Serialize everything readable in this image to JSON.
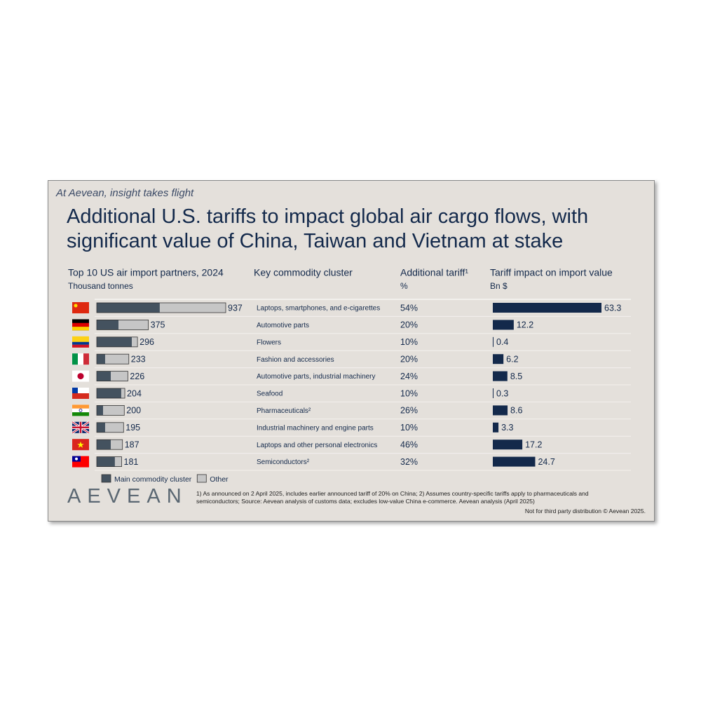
{
  "tagline": "At Aevean, insight takes flight",
  "title": "Additional U.S. tariffs to impact global air cargo flows, with significant value of China, Taiwan and Vietnam at stake",
  "chart_data": [
    {
      "type": "stacked-bar",
      "title": "Top 10 US air import partners, 2024",
      "subtitle": "Thousand tonnes",
      "series": [
        {
          "name": "Main commodity cluster",
          "color": "#44525f",
          "values": [
            458,
            158,
            255,
            61,
            102,
            178,
            46,
            61,
            102,
            132
          ]
        },
        {
          "name": "Other",
          "color": "#c6c6c6",
          "values": [
            479,
            217,
            41,
            172,
            124,
            26,
            154,
            134,
            85,
            49
          ]
        }
      ],
      "totals": [
        937,
        375,
        296,
        233,
        226,
        204,
        200,
        195,
        187,
        181
      ]
    },
    {
      "type": "bar",
      "title": "Tariff impact on import value",
      "subtitle": "Bn $",
      "color": "#13294b",
      "values": [
        63.3,
        12.2,
        0.4,
        6.2,
        8.5,
        0.3,
        8.6,
        3.3,
        17.2,
        24.7
      ]
    }
  ],
  "table": {
    "columns": [
      {
        "title": "Key commodity cluster"
      },
      {
        "title": "Additional tariff¹",
        "subtitle": "%"
      }
    ],
    "rows": [
      [
        "Laptops, smartphones, and e-cigarettes",
        "54%"
      ],
      [
        "Automotive parts",
        "20%"
      ],
      [
        "Flowers",
        "10%"
      ],
      [
        "Fashion and accessories",
        "20%"
      ],
      [
        "Automotive parts, industrial machinery",
        "24%"
      ],
      [
        "Seafood",
        "10%"
      ],
      [
        "Pharmaceuticals²",
        "26%"
      ],
      [
        "Industrial machinery and engine parts",
        "10%"
      ],
      [
        "Laptops and other personal electronics",
        "46%"
      ],
      [
        "Semiconductors²",
        "32%"
      ]
    ]
  },
  "logo": "AEVEAN",
  "footnote": "1) As announced on 2 April 2025, includes earlier announced tariff of 20% on China; 2) Assumes country-specific tariffs apply to pharmaceuticals and semiconductors; Source: Aevean analysis of customs data; excludes low-value China e-commerce. Aevean analysis (April 2025)",
  "distribution": "Not for third party distribution © Aevean 2025."
}
